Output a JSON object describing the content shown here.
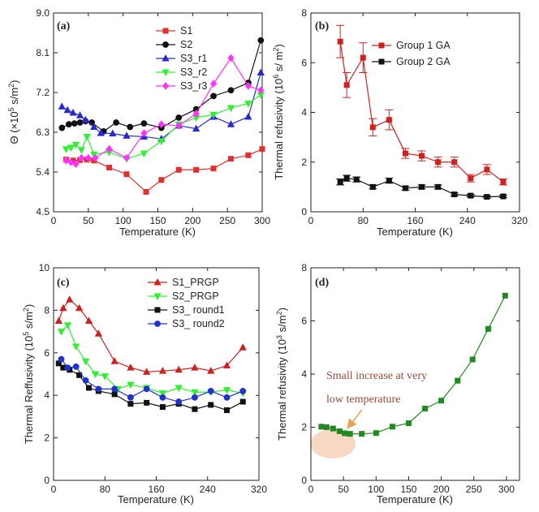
{
  "chart_data": [
    {
      "panel": "(a)",
      "type": "line",
      "title": "",
      "xlabel": "Temperature (K)",
      "ylabel": "Θ (×10^5 s/m^2)",
      "ylabel_parts": {
        "sym": "Θ (×10",
        "exp1": "5",
        "mid": " s/m",
        "exp2": "2",
        "end": ")"
      },
      "xlim": [
        0,
        300
      ],
      "ylim": [
        4.5,
        9.0
      ],
      "xticks": [
        0,
        50,
        100,
        150,
        200,
        250,
        300
      ],
      "yticks": [
        4.5,
        5.4,
        6.3,
        7.2,
        8.1,
        9.0
      ],
      "ytick_labels": [
        "4.5",
        "5.4",
        "6.3",
        "7.2",
        "8.1",
        "9.0"
      ],
      "legend_position": "top-right",
      "series": [
        {
          "name": "S1",
          "color": "#e03030",
          "marker": "square",
          "x": [
            18,
            28,
            38,
            48,
            58,
            80,
            105,
            133,
            155,
            180,
            205,
            230,
            255,
            280,
            300
          ],
          "y": [
            5.68,
            5.66,
            5.67,
            5.68,
            5.66,
            5.5,
            5.35,
            4.95,
            5.22,
            5.45,
            5.45,
            5.48,
            5.7,
            5.78,
            5.92
          ]
        },
        {
          "name": "S2",
          "color": "#111111",
          "marker": "circle",
          "x": [
            12,
            22,
            30,
            38,
            46,
            55,
            72,
            90,
            110,
            130,
            155,
            180,
            205,
            230,
            255,
            280,
            298
          ],
          "y": [
            6.4,
            6.48,
            6.5,
            6.52,
            6.55,
            6.52,
            6.32,
            6.52,
            6.42,
            6.5,
            6.4,
            6.63,
            6.82,
            7.12,
            7.25,
            7.42,
            8.38
          ]
        },
        {
          "name": "S3_r1",
          "color": "#2a2acc",
          "marker": "triangle-up",
          "x": [
            12,
            20,
            28,
            38,
            46,
            58,
            68,
            85,
            105,
            130,
            155,
            180,
            205,
            230,
            255,
            280,
            298
          ],
          "y": [
            6.88,
            6.8,
            6.74,
            6.68,
            6.58,
            6.42,
            6.28,
            6.27,
            6.22,
            6.2,
            6.15,
            6.45,
            6.38,
            6.65,
            6.48,
            6.65,
            7.65
          ]
        },
        {
          "name": "S3_r2",
          "color": "#33ee33",
          "marker": "triangle-down",
          "x": [
            18,
            25,
            32,
            40,
            48,
            58,
            80,
            105,
            130,
            155,
            180,
            205,
            230,
            255,
            280,
            298
          ],
          "y": [
            5.92,
            5.95,
            6.02,
            5.9,
            6.2,
            5.8,
            5.85,
            5.7,
            5.82,
            6.1,
            6.48,
            6.63,
            6.7,
            6.85,
            6.95,
            7.15
          ]
        },
        {
          "name": "S3_r3",
          "color": "#ff33ff",
          "marker": "diamond",
          "x": [
            18,
            25,
            32,
            40,
            50,
            60,
            80,
            105,
            130,
            155,
            180,
            205,
            230,
            255,
            280,
            298
          ],
          "y": [
            5.66,
            5.62,
            5.58,
            5.72,
            5.72,
            5.72,
            5.92,
            5.72,
            6.28,
            6.48,
            6.45,
            6.72,
            7.4,
            7.98,
            7.35,
            7.25
          ]
        }
      ]
    },
    {
      "panel": "(b)",
      "type": "line",
      "title": "",
      "xlabel": "Temperature (K)",
      "ylabel": "Thermal refusivity (10^6 s/m^2)",
      "ylabel_parts": {
        "pre": "Thermal refusivity (10",
        "exp1": "6",
        "mid": " s/ m",
        "exp2": "2",
        "end": ")"
      },
      "xlim": [
        0,
        320
      ],
      "ylim": [
        0,
        8
      ],
      "xticks": [
        0,
        80,
        160,
        240,
        320
      ],
      "yticks": [
        0,
        2,
        4,
        6,
        8
      ],
      "legend_position": "top-right",
      "series": [
        {
          "name": "Group 1 GA",
          "color": "#cc2222",
          "marker": "square",
          "x": [
            45,
            55,
            80,
            95,
            120,
            145,
            170,
            195,
            220,
            245,
            270,
            295
          ],
          "y": [
            6.85,
            5.1,
            6.2,
            3.4,
            3.7,
            2.35,
            2.25,
            2.0,
            2.0,
            1.35,
            1.7,
            1.2
          ],
          "err": [
            0.65,
            0.5,
            0.6,
            0.35,
            0.4,
            0.2,
            0.2,
            0.2,
            0.2,
            0.15,
            0.2,
            0.12
          ]
        },
        {
          "name": "Group 2 GA",
          "color": "#111111",
          "marker": "square",
          "x": [
            45,
            55,
            70,
            95,
            120,
            145,
            170,
            195,
            220,
            245,
            270,
            295
          ],
          "y": [
            1.2,
            1.35,
            1.3,
            1.0,
            1.25,
            0.95,
            1.0,
            1.0,
            0.7,
            0.65,
            0.6,
            0.62
          ],
          "err": [
            0.12,
            0.12,
            0.1,
            0.08,
            0.1,
            0.08,
            0.08,
            0.08,
            0.06,
            0.05,
            0.05,
            0.05
          ]
        }
      ]
    },
    {
      "panel": "(c)",
      "type": "line",
      "title": "",
      "xlabel": "Temperature (K)",
      "ylabel": "Thermal Reffusivity (10^5 s/m^2)",
      "ylabel_parts": {
        "pre": "Thermal Reffusivity (10",
        "exp1": "5",
        "mid": " s/m",
        "exp2": "2",
        "end": ")"
      },
      "xlim": [
        0,
        320
      ],
      "ylim": [
        0,
        10
      ],
      "xticks": [
        0,
        80,
        160,
        240,
        320
      ],
      "yticks": [
        0,
        2,
        4,
        6,
        8,
        10
      ],
      "legend_position": "top-right",
      "series": [
        {
          "name": "S1_PRGP",
          "color": "#cc2222",
          "marker": "triangle-up",
          "x": [
            8,
            15,
            25,
            40,
            55,
            70,
            95,
            120,
            145,
            170,
            195,
            220,
            245,
            270,
            295
          ],
          "y": [
            7.5,
            8.1,
            8.5,
            8.1,
            7.5,
            6.9,
            5.6,
            5.3,
            5.1,
            5.15,
            5.2,
            5.3,
            5.15,
            5.4,
            6.25
          ]
        },
        {
          "name": "S2_PRGP",
          "color": "#33ee33",
          "marker": "triangle-down",
          "x": [
            12,
            22,
            35,
            50,
            65,
            80,
            100,
            120,
            145,
            170,
            195,
            220,
            245,
            270,
            295
          ],
          "y": [
            7.0,
            7.3,
            6.3,
            5.6,
            5.0,
            4.9,
            4.3,
            4.5,
            4.35,
            4.1,
            4.35,
            4.15,
            4.15,
            4.25,
            4.1
          ]
        },
        {
          "name": "S3_ round1",
          "color": "#111111",
          "marker": "square",
          "x": [
            8,
            15,
            25,
            40,
            55,
            70,
            95,
            120,
            145,
            170,
            195,
            220,
            245,
            270,
            295
          ],
          "y": [
            5.5,
            5.3,
            5.2,
            4.95,
            4.35,
            4.2,
            4.05,
            3.6,
            3.65,
            3.45,
            3.6,
            3.35,
            3.55,
            3.3,
            3.7
          ]
        },
        {
          "name": "S3_ round2",
          "color": "#2233cc",
          "marker": "circle",
          "x": [
            12,
            22,
            35,
            50,
            70,
            95,
            120,
            145,
            170,
            195,
            220,
            245,
            270,
            295
          ],
          "y": [
            5.7,
            5.3,
            5.35,
            4.7,
            4.3,
            4.3,
            3.9,
            4.3,
            3.9,
            3.7,
            3.9,
            4.2,
            3.9,
            4.2
          ]
        }
      ]
    },
    {
      "panel": "(d)",
      "type": "line",
      "title": "",
      "xlabel": "Temperature (K)",
      "ylabel": "Thermal refusivity (10^3 s/m^2)",
      "ylabel_parts": {
        "pre": "Thermal refusivity (10",
        "exp1": "3",
        "mid": " s/m",
        "exp2": "2",
        "end": ")"
      },
      "xlim": [
        0,
        320
      ],
      "ylim": [
        0,
        8
      ],
      "xticks": [
        0,
        50,
        100,
        150,
        200,
        250,
        300
      ],
      "yticks": [
        0,
        2,
        4,
        6,
        8
      ],
      "annotation": "Small increase at very low temperature",
      "annotation_lines": [
        "Small increase at very",
        "low temperature"
      ],
      "series": [
        {
          "name": "",
          "color": "#228822",
          "marker": "square",
          "x": [
            16,
            24,
            34,
            44,
            52,
            60,
            78,
            100,
            125,
            150,
            175,
            200,
            225,
            248,
            272,
            298
          ],
          "y": [
            2.02,
            2.0,
            1.95,
            1.85,
            1.77,
            1.75,
            1.75,
            1.78,
            2.02,
            2.15,
            2.7,
            3.0,
            3.75,
            4.55,
            5.7,
            6.95
          ]
        }
      ]
    }
  ]
}
